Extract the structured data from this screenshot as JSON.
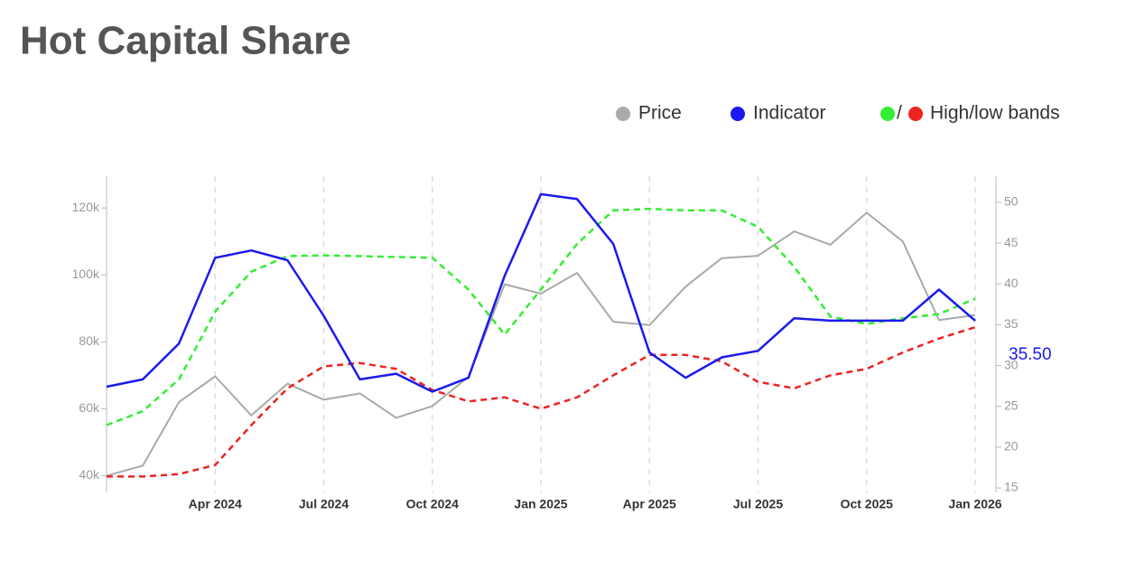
{
  "chart_data": {
    "type": "line",
    "title": "Hot Capital Share",
    "x": [
      "2024-01",
      "2024-02",
      "2024-03",
      "2024-04",
      "2024-05",
      "2024-06",
      "2024-07",
      "2024-08",
      "2024-09",
      "2024-10",
      "2024-11",
      "2024-12",
      "2025-01",
      "2025-02",
      "2025-03",
      "2025-04",
      "2025-05",
      "2025-06",
      "2025-07",
      "2025-08",
      "2025-09",
      "2025-10",
      "2025-11",
      "2025-12",
      "2026-01"
    ],
    "xlim": [
      "2024-01",
      "2026-01"
    ],
    "xticks": [
      {
        "value": "2024-04",
        "label": "Apr 2024"
      },
      {
        "value": "2024-07",
        "label": "Jul 2024"
      },
      {
        "value": "2024-10",
        "label": "Oct 2024"
      },
      {
        "value": "2025-01",
        "label": "Jan 2025"
      },
      {
        "value": "2025-04",
        "label": "Apr 2025"
      },
      {
        "value": "2025-07",
        "label": "Jul 2025"
      },
      {
        "value": "2025-10",
        "label": "Oct 2025"
      },
      {
        "value": "2026-01",
        "label": "Jan 2026"
      }
    ],
    "ylim": [
      35000,
      129500
    ],
    "yticks": [
      {
        "value": 40000,
        "label": "40k"
      },
      {
        "value": 60000,
        "label": "60k"
      },
      {
        "value": 80000,
        "label": "80k"
      },
      {
        "value": 100000,
        "label": "100k"
      },
      {
        "value": 120000,
        "label": "120k"
      }
    ],
    "y2lim": [
      14.45,
      53.2
    ],
    "y2ticks": [
      15,
      20,
      25,
      30,
      35,
      40,
      45,
      50
    ],
    "grid": true,
    "legend_separator": "/",
    "series": [
      {
        "name": "Price",
        "color": "#aaaaaa",
        "dash": false,
        "values": [
          40000,
          43000,
          62000,
          69700,
          58000,
          67500,
          62700,
          64600,
          57300,
          60800,
          69500,
          97200,
          94400,
          100600,
          86000,
          85000,
          96500,
          105000,
          105700,
          113000,
          109000,
          118600,
          110000,
          86500,
          88000
        ]
      },
      {
        "name": "Indicator",
        "color": "#1a1aee",
        "axis": "y2",
        "dash": false,
        "values": [
          27.4,
          28.3,
          32.7,
          43.2,
          44.1,
          42.9,
          36.1,
          28.3,
          29.0,
          26.8,
          28.5,
          41.0,
          51.0,
          50.4,
          44.9,
          31.6,
          28.5,
          31.0,
          31.8,
          35.8,
          35.5,
          35.5,
          35.5,
          39.3,
          35.5
        ],
        "value_labels": [
          null,
          null,
          null,
          null,
          null,
          null,
          null,
          null,
          null,
          null,
          null,
          null,
          null,
          null,
          null,
          null,
          null,
          null,
          null,
          null,
          null,
          null,
          null,
          null,
          "35.50"
        ]
      }
    ],
    "bands": {
      "name": "High/low bands",
      "axis": "y2",
      "high": {
        "color": "#33ee33",
        "values": [
          22.7,
          24.4,
          28.3,
          36.6,
          41.5,
          43.4,
          43.5,
          43.4,
          43.3,
          43.2,
          39.3,
          33.8,
          39.3,
          44.9,
          49.0,
          49.2,
          49.0,
          49.0,
          47.0,
          42.1,
          36.0,
          35.1,
          35.8,
          36.3,
          38.2
        ]
      },
      "low": {
        "color": "#ee2222",
        "values": [
          16.4,
          16.4,
          16.7,
          17.8,
          22.7,
          27.2,
          29.9,
          30.3,
          29.6,
          27.0,
          25.6,
          26.1,
          24.7,
          26.1,
          28.8,
          31.3,
          31.3,
          30.5,
          28.0,
          27.2,
          28.8,
          29.6,
          31.6,
          33.3,
          34.7
        ]
      }
    }
  }
}
